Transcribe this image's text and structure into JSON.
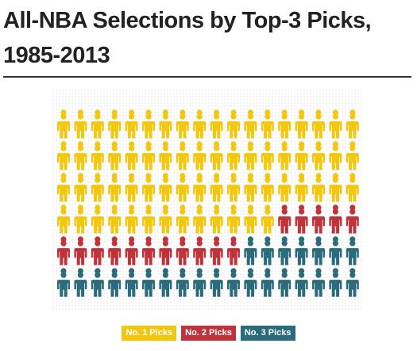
{
  "chart_data": {
    "type": "pictograph",
    "title": "All-NBA Selections by Top-3 Picks, 1985-2013",
    "series": [
      {
        "name": "No. 1 Picks",
        "color": "#f4c70f",
        "value": 67
      },
      {
        "name": "No. 2 Picks",
        "color": "#c1333b",
        "value": 16
      },
      {
        "name": "No. 3 Picks",
        "color": "#2b6b7b",
        "value": 25
      }
    ]
  }
}
